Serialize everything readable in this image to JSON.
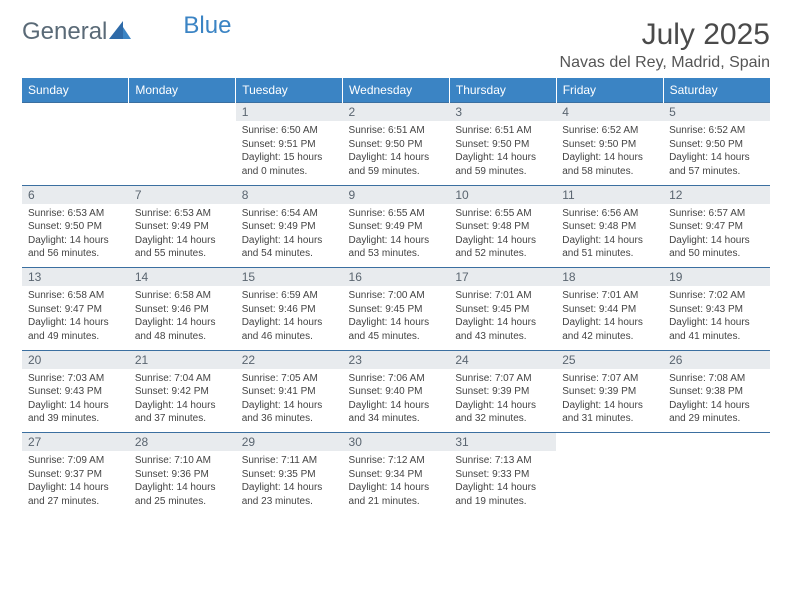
{
  "brand": {
    "part1": "General",
    "part2": "Blue"
  },
  "title": "July 2025",
  "location": "Navas del Rey, Madrid, Spain",
  "colors": {
    "header_bg": "#3b84c4",
    "header_text": "#ffffff",
    "daynum_bg": "#e8ebee",
    "daynum_text": "#5a6570",
    "rule": "#3b6fa0",
    "body_text": "#444444"
  },
  "weekdays": [
    "Sunday",
    "Monday",
    "Tuesday",
    "Wednesday",
    "Thursday",
    "Friday",
    "Saturday"
  ],
  "weeks": [
    [
      null,
      null,
      {
        "n": "1",
        "sr": "Sunrise: 6:50 AM",
        "ss": "Sunset: 9:51 PM",
        "d1": "Daylight: 15 hours",
        "d2": "and 0 minutes."
      },
      {
        "n": "2",
        "sr": "Sunrise: 6:51 AM",
        "ss": "Sunset: 9:50 PM",
        "d1": "Daylight: 14 hours",
        "d2": "and 59 minutes."
      },
      {
        "n": "3",
        "sr": "Sunrise: 6:51 AM",
        "ss": "Sunset: 9:50 PM",
        "d1": "Daylight: 14 hours",
        "d2": "and 59 minutes."
      },
      {
        "n": "4",
        "sr": "Sunrise: 6:52 AM",
        "ss": "Sunset: 9:50 PM",
        "d1": "Daylight: 14 hours",
        "d2": "and 58 minutes."
      },
      {
        "n": "5",
        "sr": "Sunrise: 6:52 AM",
        "ss": "Sunset: 9:50 PM",
        "d1": "Daylight: 14 hours",
        "d2": "and 57 minutes."
      }
    ],
    [
      {
        "n": "6",
        "sr": "Sunrise: 6:53 AM",
        "ss": "Sunset: 9:50 PM",
        "d1": "Daylight: 14 hours",
        "d2": "and 56 minutes."
      },
      {
        "n": "7",
        "sr": "Sunrise: 6:53 AM",
        "ss": "Sunset: 9:49 PM",
        "d1": "Daylight: 14 hours",
        "d2": "and 55 minutes."
      },
      {
        "n": "8",
        "sr": "Sunrise: 6:54 AM",
        "ss": "Sunset: 9:49 PM",
        "d1": "Daylight: 14 hours",
        "d2": "and 54 minutes."
      },
      {
        "n": "9",
        "sr": "Sunrise: 6:55 AM",
        "ss": "Sunset: 9:49 PM",
        "d1": "Daylight: 14 hours",
        "d2": "and 53 minutes."
      },
      {
        "n": "10",
        "sr": "Sunrise: 6:55 AM",
        "ss": "Sunset: 9:48 PM",
        "d1": "Daylight: 14 hours",
        "d2": "and 52 minutes."
      },
      {
        "n": "11",
        "sr": "Sunrise: 6:56 AM",
        "ss": "Sunset: 9:48 PM",
        "d1": "Daylight: 14 hours",
        "d2": "and 51 minutes."
      },
      {
        "n": "12",
        "sr": "Sunrise: 6:57 AM",
        "ss": "Sunset: 9:47 PM",
        "d1": "Daylight: 14 hours",
        "d2": "and 50 minutes."
      }
    ],
    [
      {
        "n": "13",
        "sr": "Sunrise: 6:58 AM",
        "ss": "Sunset: 9:47 PM",
        "d1": "Daylight: 14 hours",
        "d2": "and 49 minutes."
      },
      {
        "n": "14",
        "sr": "Sunrise: 6:58 AM",
        "ss": "Sunset: 9:46 PM",
        "d1": "Daylight: 14 hours",
        "d2": "and 48 minutes."
      },
      {
        "n": "15",
        "sr": "Sunrise: 6:59 AM",
        "ss": "Sunset: 9:46 PM",
        "d1": "Daylight: 14 hours",
        "d2": "and 46 minutes."
      },
      {
        "n": "16",
        "sr": "Sunrise: 7:00 AM",
        "ss": "Sunset: 9:45 PM",
        "d1": "Daylight: 14 hours",
        "d2": "and 45 minutes."
      },
      {
        "n": "17",
        "sr": "Sunrise: 7:01 AM",
        "ss": "Sunset: 9:45 PM",
        "d1": "Daylight: 14 hours",
        "d2": "and 43 minutes."
      },
      {
        "n": "18",
        "sr": "Sunrise: 7:01 AM",
        "ss": "Sunset: 9:44 PM",
        "d1": "Daylight: 14 hours",
        "d2": "and 42 minutes."
      },
      {
        "n": "19",
        "sr": "Sunrise: 7:02 AM",
        "ss": "Sunset: 9:43 PM",
        "d1": "Daylight: 14 hours",
        "d2": "and 41 minutes."
      }
    ],
    [
      {
        "n": "20",
        "sr": "Sunrise: 7:03 AM",
        "ss": "Sunset: 9:43 PM",
        "d1": "Daylight: 14 hours",
        "d2": "and 39 minutes."
      },
      {
        "n": "21",
        "sr": "Sunrise: 7:04 AM",
        "ss": "Sunset: 9:42 PM",
        "d1": "Daylight: 14 hours",
        "d2": "and 37 minutes."
      },
      {
        "n": "22",
        "sr": "Sunrise: 7:05 AM",
        "ss": "Sunset: 9:41 PM",
        "d1": "Daylight: 14 hours",
        "d2": "and 36 minutes."
      },
      {
        "n": "23",
        "sr": "Sunrise: 7:06 AM",
        "ss": "Sunset: 9:40 PM",
        "d1": "Daylight: 14 hours",
        "d2": "and 34 minutes."
      },
      {
        "n": "24",
        "sr": "Sunrise: 7:07 AM",
        "ss": "Sunset: 9:39 PM",
        "d1": "Daylight: 14 hours",
        "d2": "and 32 minutes."
      },
      {
        "n": "25",
        "sr": "Sunrise: 7:07 AM",
        "ss": "Sunset: 9:39 PM",
        "d1": "Daylight: 14 hours",
        "d2": "and 31 minutes."
      },
      {
        "n": "26",
        "sr": "Sunrise: 7:08 AM",
        "ss": "Sunset: 9:38 PM",
        "d1": "Daylight: 14 hours",
        "d2": "and 29 minutes."
      }
    ],
    [
      {
        "n": "27",
        "sr": "Sunrise: 7:09 AM",
        "ss": "Sunset: 9:37 PM",
        "d1": "Daylight: 14 hours",
        "d2": "and 27 minutes."
      },
      {
        "n": "28",
        "sr": "Sunrise: 7:10 AM",
        "ss": "Sunset: 9:36 PM",
        "d1": "Daylight: 14 hours",
        "d2": "and 25 minutes."
      },
      {
        "n": "29",
        "sr": "Sunrise: 7:11 AM",
        "ss": "Sunset: 9:35 PM",
        "d1": "Daylight: 14 hours",
        "d2": "and 23 minutes."
      },
      {
        "n": "30",
        "sr": "Sunrise: 7:12 AM",
        "ss": "Sunset: 9:34 PM",
        "d1": "Daylight: 14 hours",
        "d2": "and 21 minutes."
      },
      {
        "n": "31",
        "sr": "Sunrise: 7:13 AM",
        "ss": "Sunset: 9:33 PM",
        "d1": "Daylight: 14 hours",
        "d2": "and 19 minutes."
      },
      null,
      null
    ]
  ]
}
